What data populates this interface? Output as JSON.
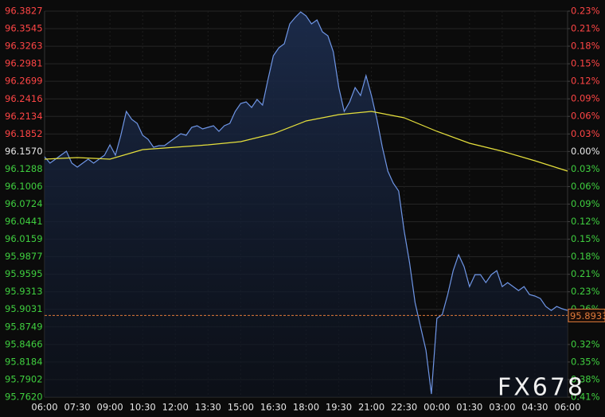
{
  "chart_data": {
    "type": "line",
    "xlim": [
      0,
      1440
    ],
    "xticks": [
      {
        "value": 0,
        "label": "06:00"
      },
      {
        "value": 90,
        "label": "07:30"
      },
      {
        "value": 180,
        "label": "09:00"
      },
      {
        "value": 270,
        "label": "10:30"
      },
      {
        "value": 360,
        "label": "12:00"
      },
      {
        "value": 450,
        "label": "13:30"
      },
      {
        "value": 540,
        "label": "15:00"
      },
      {
        "value": 630,
        "label": "16:30"
      },
      {
        "value": 720,
        "label": "18:00"
      },
      {
        "value": 810,
        "label": "19:30"
      },
      {
        "value": 900,
        "label": "21:00"
      },
      {
        "value": 990,
        "label": "22:30"
      },
      {
        "value": 1080,
        "label": "00:00"
      },
      {
        "value": 1170,
        "label": "01:30"
      },
      {
        "value": 1260,
        "label": "03:00"
      },
      {
        "value": 1350,
        "label": "04:30"
      },
      {
        "value": 1440,
        "label": "06:00"
      }
    ],
    "ylim": [
      95.762,
      96.3827
    ],
    "yticks": [
      96.3827,
      96.3545,
      96.3263,
      96.2981,
      96.2699,
      96.2416,
      96.2134,
      96.1852,
      {
        "value": 96.157,
        "label": "96.1570"
      },
      96.1288,
      96.1006,
      96.0724,
      96.0441,
      96.0159,
      95.9877,
      95.9595,
      95.9313,
      95.9031,
      95.8749,
      95.8466,
      95.8184,
      95.7902,
      {
        "value": 95.762,
        "label": "95.7620"
      }
    ],
    "y2lim": [
      -0.4108,
      0.2347
    ],
    "y2ticks": [
      {
        "value": 0.2347,
        "label": "0.23%"
      },
      {
        "value": 0.2054,
        "label": "0.21%"
      },
      {
        "value": 0.1761,
        "label": "0.18%"
      },
      {
        "value": 0.1467,
        "label": "0.15%"
      },
      {
        "value": 0.1174,
        "label": "0.12%"
      },
      {
        "value": 0.088,
        "label": "0.09%"
      },
      {
        "value": 0.0587,
        "label": "0.06%"
      },
      {
        "value": 0.0293,
        "label": "0.03%"
      },
      {
        "value": 0,
        "label": "0.00%"
      },
      {
        "value": -0.0293,
        "label": "0.03%"
      },
      {
        "value": -0.0587,
        "label": "0.06%"
      },
      {
        "value": -0.088,
        "label": "0.09%"
      },
      {
        "value": -0.1174,
        "label": "0.12%"
      },
      {
        "value": -0.1467,
        "label": "0.15%"
      },
      {
        "value": -0.1761,
        "label": "0.18%"
      },
      {
        "value": -0.2054,
        "label": "0.21%"
      },
      {
        "value": -0.2347,
        "label": "0.23%"
      },
      {
        "value": -0.264,
        "label": "0.26%"
      },
      {
        "value": -0.3228,
        "label": "0.32%"
      },
      {
        "value": -0.3521,
        "label": "0.35%"
      },
      {
        "value": -0.3814,
        "label": "0.38%"
      },
      {
        "value": -0.4108,
        "label": "0.41%"
      }
    ],
    "up_color": "#ff4545",
    "down_color": "#3fcf3f",
    "flat_color": "#e8e8e8",
    "grid": true,
    "last_price": 95.8933,
    "watermark": "FX678",
    "series": [
      {
        "color": "#6f96e6",
        "area": true,
        "x": [
          0,
          15,
          30,
          45,
          60,
          75,
          90,
          105,
          120,
          135,
          150,
          165,
          180,
          195,
          210,
          225,
          240,
          255,
          270,
          285,
          300,
          315,
          330,
          345,
          360,
          375,
          390,
          405,
          420,
          435,
          450,
          465,
          480,
          495,
          510,
          525,
          540,
          555,
          570,
          585,
          600,
          615,
          630,
          645,
          660,
          675,
          690,
          705,
          720,
          735,
          750,
          765,
          780,
          795,
          810,
          825,
          840,
          855,
          870,
          885,
          900,
          915,
          930,
          945,
          960,
          975,
          990,
          1005,
          1020,
          1035,
          1050,
          1065,
          1080,
          1095,
          1110,
          1125,
          1140,
          1155,
          1170,
          1185,
          1200,
          1215,
          1230,
          1245,
          1260,
          1275,
          1290,
          1305,
          1320,
          1335,
          1350,
          1365,
          1380,
          1395,
          1410,
          1425,
          1440
        ],
        "values": [
          96.1485,
          96.1382,
          96.1446,
          96.151,
          96.1574,
          96.1382,
          96.1318,
          96.1382,
          96.1446,
          96.1382,
          96.1446,
          96.151,
          96.1677,
          96.151,
          96.183,
          96.2214,
          96.2086,
          96.2022,
          96.183,
          96.1766,
          96.1638,
          96.1664,
          96.1664,
          96.1728,
          96.1792,
          96.1856,
          96.183,
          96.1958,
          96.1984,
          96.1933,
          96.1958,
          96.1984,
          96.1894,
          96.1984,
          96.2022,
          96.2214,
          96.2342,
          96.2368,
          96.2278,
          96.2406,
          96.2317,
          96.2726,
          96.311,
          96.3238,
          96.3302,
          96.3622,
          96.3725,
          96.3814,
          96.375,
          96.3622,
          96.3686,
          96.3494,
          96.343,
          96.3174,
          96.2598,
          96.2214,
          96.2368,
          96.2598,
          96.247,
          96.279,
          96.247,
          96.2086,
          96.1638,
          96.1254,
          96.1062,
          96.0934,
          96.0294,
          95.9782,
          95.9142,
          95.8758,
          95.8374,
          95.767,
          95.8886,
          95.895,
          95.927,
          95.9654,
          95.991,
          95.9718,
          95.9398,
          95.959,
          95.959,
          95.9462,
          95.959,
          95.9654,
          95.9398,
          95.9462,
          95.9398,
          95.9334,
          95.9398,
          95.927,
          95.9245,
          95.9206,
          95.9078,
          95.9014,
          95.9078,
          95.904,
          95.9014
        ]
      },
      {
        "color": "#e6e03c",
        "x": [
          0,
          90,
          180,
          270,
          360,
          450,
          540,
          630,
          720,
          810,
          900,
          990,
          1080,
          1170,
          1260,
          1350,
          1440
        ],
        "values": [
          96.1446,
          96.1472,
          96.1446,
          96.16,
          96.1638,
          96.1677,
          96.1728,
          96.1856,
          96.2061,
          96.2163,
          96.2214,
          96.2112,
          96.1894,
          96.1702,
          96.1574,
          96.1421,
          96.1254
        ]
      }
    ]
  }
}
